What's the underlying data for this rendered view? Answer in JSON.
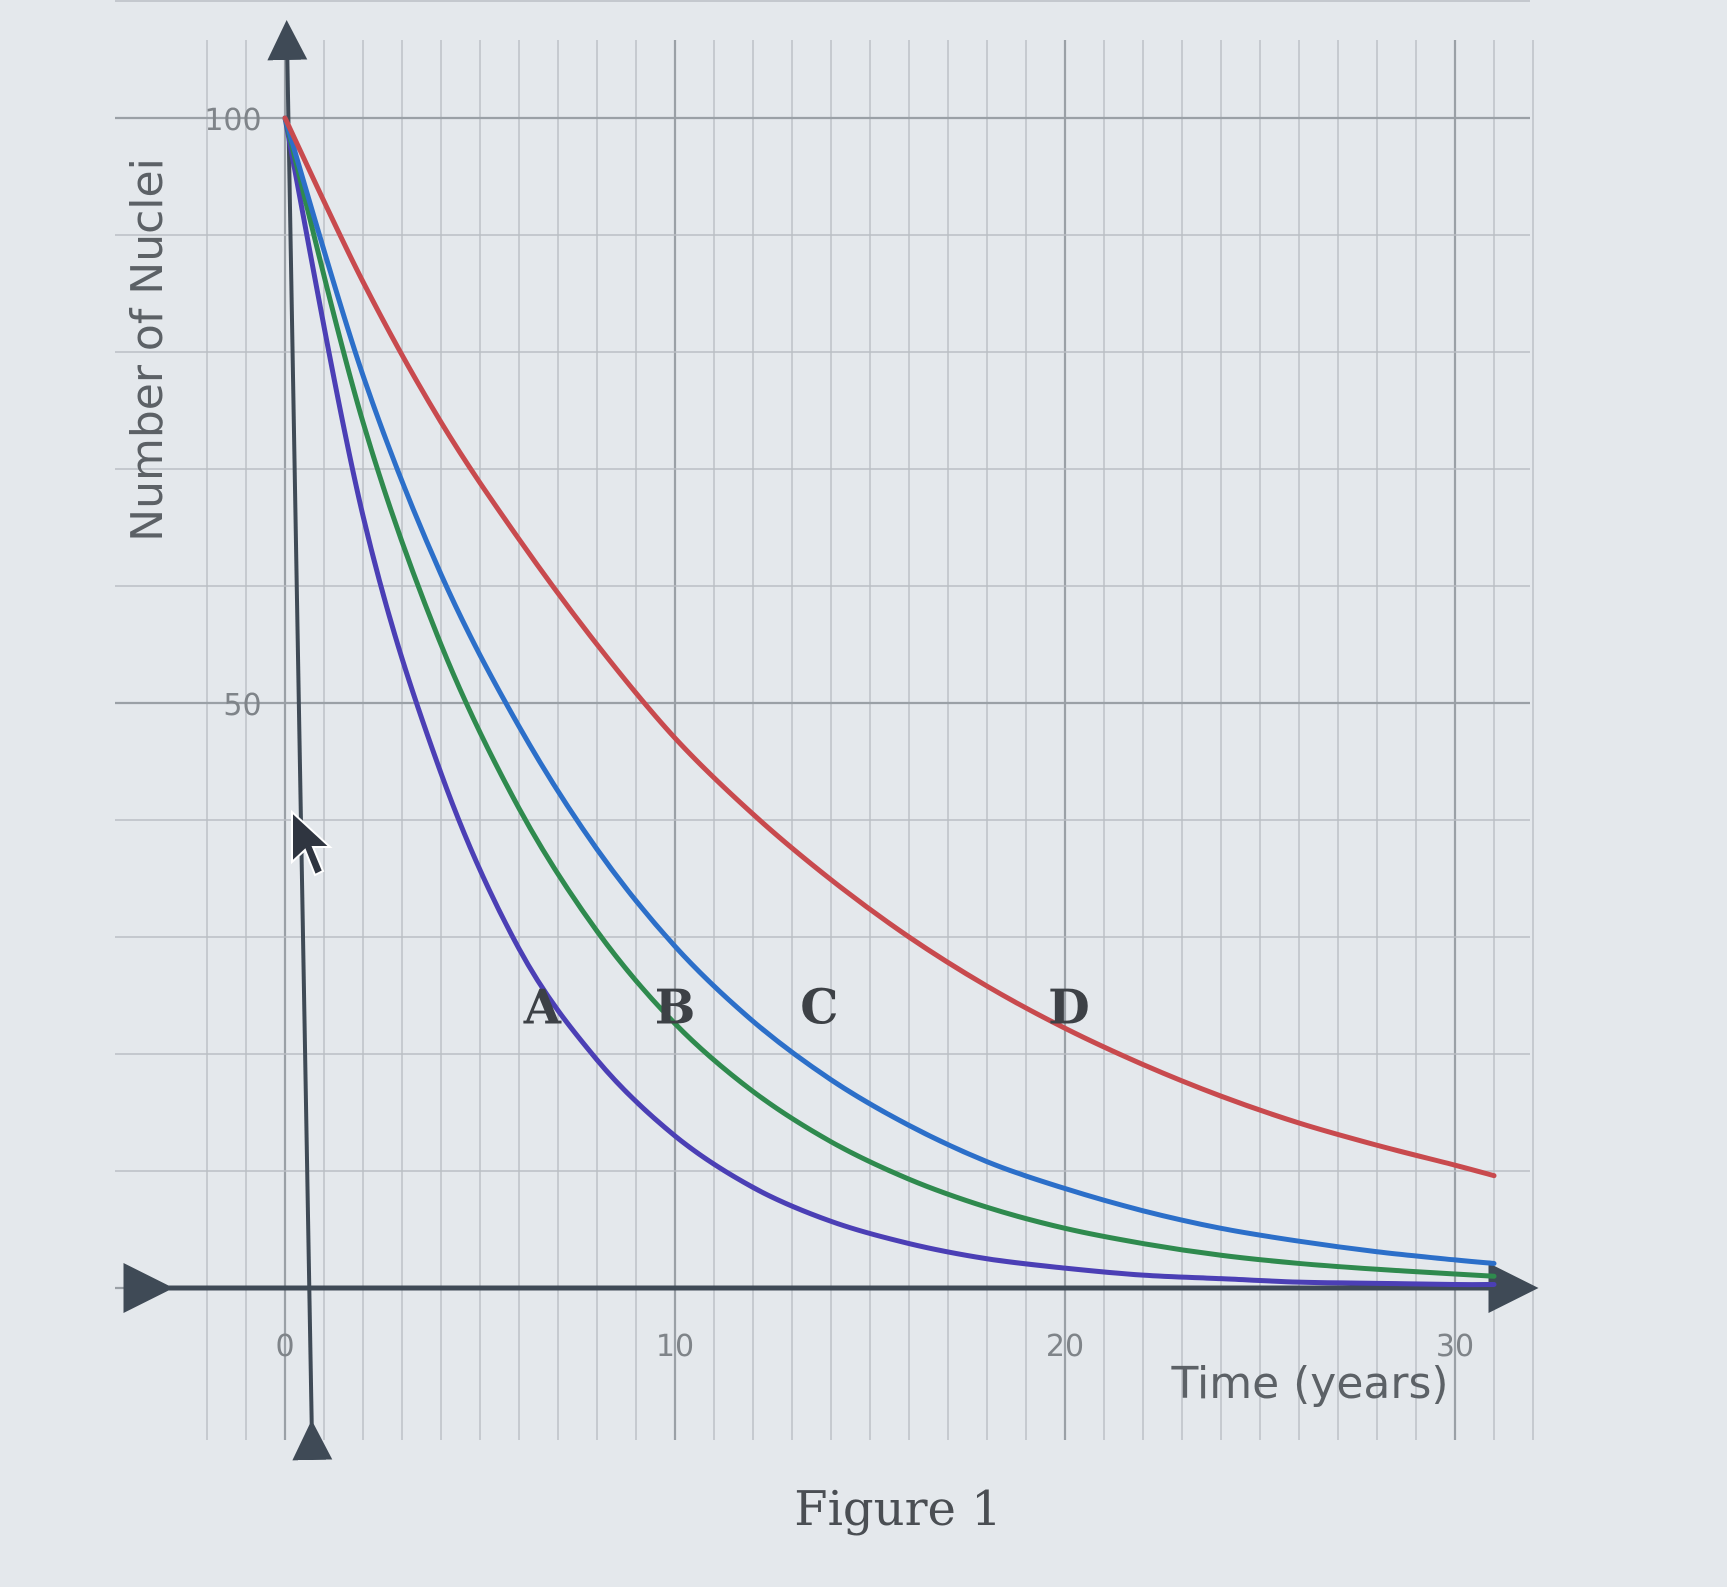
{
  "figure": {
    "caption": "Figure 1"
  },
  "chart_data": {
    "type": "line",
    "xlabel": "Time (years)",
    "ylabel": "Number of Nuclei",
    "xlim": [
      0,
      31
    ],
    "ylim": [
      0,
      100
    ],
    "grid": true,
    "x_ticks": [
      "0",
      "10",
      "20",
      "30"
    ],
    "y_ticks": [
      "50",
      "100"
    ],
    "x": [
      0,
      2,
      4,
      6,
      8,
      10,
      12,
      14,
      16,
      18,
      20,
      22,
      24,
      26,
      28,
      30,
      31
    ],
    "series": [
      {
        "name": "A",
        "color": "#4b3fb5",
        "values": [
          100,
          66,
          44,
          29,
          19.5,
          13,
          8.6,
          5.7,
          3.8,
          2.5,
          1.7,
          1.1,
          0.8,
          0.5,
          0.4,
          0.3,
          0.3
        ]
      },
      {
        "name": "B",
        "color": "#2f8a4e",
        "values": [
          100,
          74,
          55,
          41,
          30.5,
          22.6,
          16.8,
          12.5,
          9.3,
          6.9,
          5.1,
          3.8,
          2.8,
          2.1,
          1.6,
          1.2,
          1.0
        ]
      },
      {
        "name": "C",
        "color": "#2c6fc9",
        "values": [
          100,
          78,
          61,
          48,
          37.5,
          29.2,
          22.8,
          17.8,
          13.9,
          10.8,
          8.5,
          6.6,
          5.1,
          4.0,
          3.1,
          2.4,
          2.1
        ]
      },
      {
        "name": "D",
        "color": "#c84a4e",
        "values": [
          100,
          86,
          74,
          64,
          55,
          47,
          40.5,
          34.9,
          30.0,
          25.8,
          22.2,
          19.1,
          16.4,
          14.1,
          12.2,
          10.5,
          9.6
        ]
      }
    ]
  }
}
